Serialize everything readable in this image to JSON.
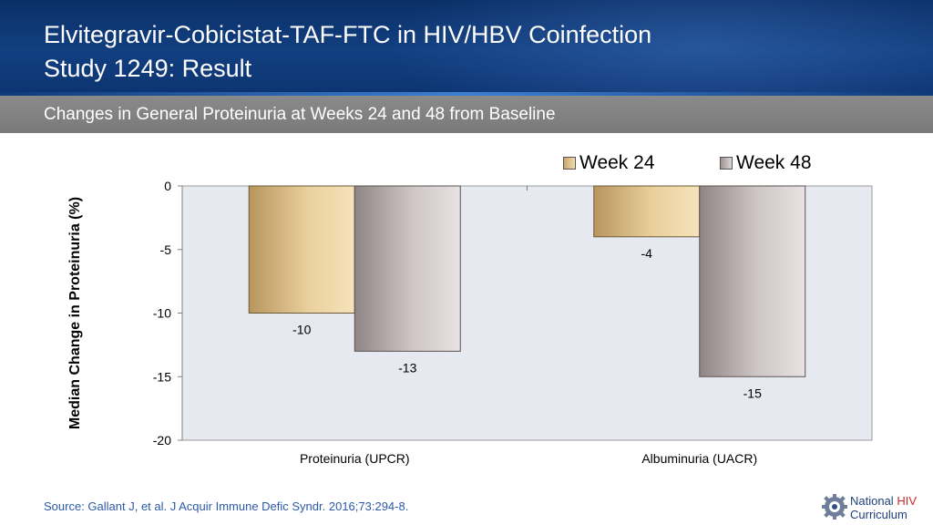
{
  "header": {
    "title_line1": "Elvitegravir-Cobicistat-TAF-FTC in HIV/HBV Coinfection",
    "title_line2": "Study 1249: Result",
    "subtitle": "Changes in General Proteinuria at Weeks 24 and 48 from Baseline"
  },
  "chart_data": {
    "type": "bar",
    "categories": [
      "Proteinuria (UPCR)",
      "Albuminuria (UACR)"
    ],
    "series": [
      {
        "name": "Week 24",
        "values": [
          -10,
          -4
        ]
      },
      {
        "name": "Week 48",
        "values": [
          -13,
          -15
        ]
      }
    ],
    "data_labels": [
      [
        "-10",
        "-4"
      ],
      [
        "-13",
        "-15"
      ]
    ],
    "ylabel": "Median Change in Proteinuria (%)",
    "xlabel": "",
    "ylim": [
      -20,
      0
    ],
    "yticks": [
      0,
      -5,
      -10,
      -15,
      -20
    ],
    "ytick_labels": [
      "0",
      "-5",
      "-10",
      "-15",
      "-20"
    ],
    "legend_position": "top-right",
    "grid": false,
    "colors": {
      "Week 24": "#e3c48e",
      "Week 48": "#c9bfbf",
      "plot_bg": "#e6e9ef"
    }
  },
  "footer": {
    "source": "Source: Gallant J, et al. J Acquir Immune Defic Syndr. 2016;73:294-8.",
    "logo_line1_a": "National ",
    "logo_line1_b": "HIV",
    "logo_line2": "Curriculum"
  }
}
